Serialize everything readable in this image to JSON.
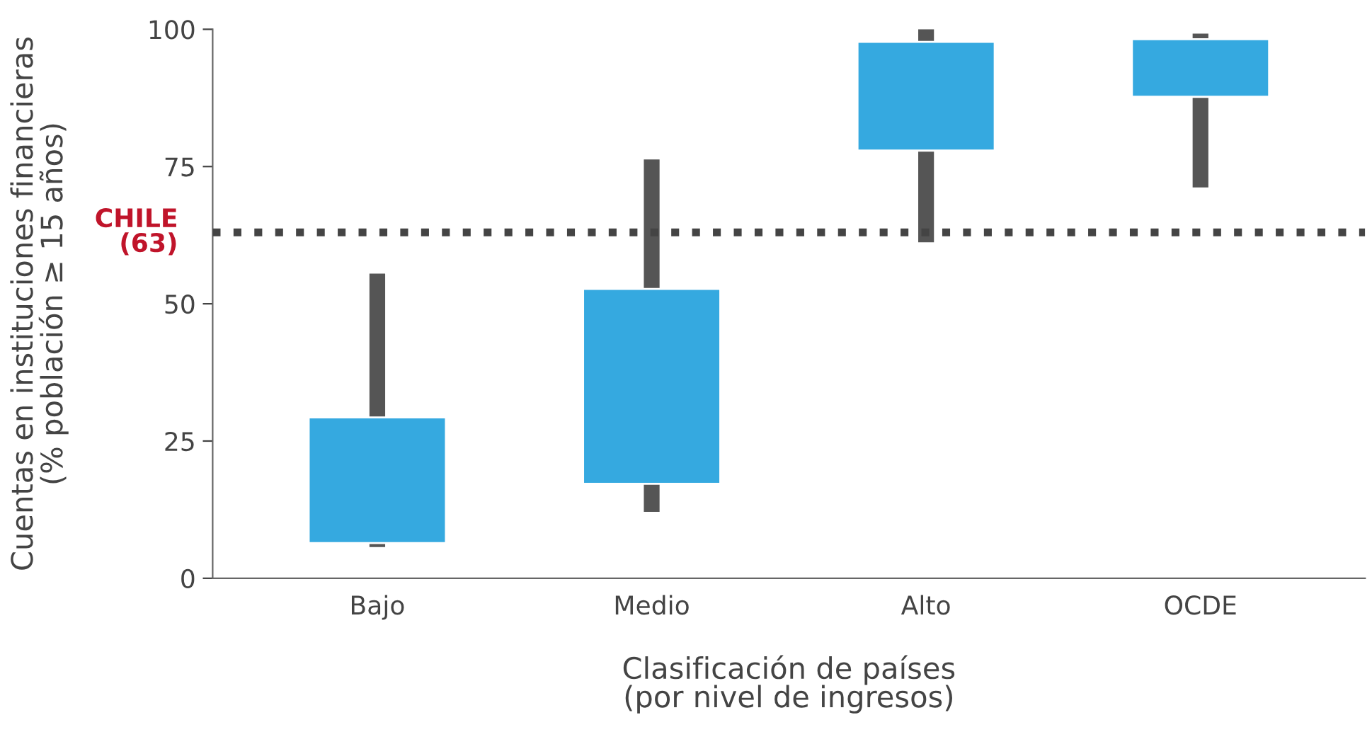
{
  "chart_data": {
    "type": "candlestick",
    "categories": [
      "Bajo",
      "Medio",
      "Alto",
      "OCDE"
    ],
    "ohlc": [
      [
        6.4,
        55.5,
        5.7,
        29.3
      ],
      [
        17.2,
        76.3,
        12.1,
        52.7
      ],
      [
        77.9,
        100,
        61.2,
        97.7
      ],
      [
        87.7,
        99.2,
        71.2,
        98.2
      ]
    ],
    "color": "#35a9e0",
    "xlabel": "Clasificación de países\n(por nivel de ingresos)",
    "ylabel": "Cuentas en instituciones financieras\n(% población ≥ 15 años)",
    "ylim": [
      0,
      100
    ],
    "yticks": [
      0,
      25,
      50,
      75,
      100
    ],
    "ref_lines": [
      {
        "axis": "y",
        "value": 63,
        "label": "CHILE\n(63)",
        "color": "#444444",
        "line_style": "dotted"
      }
    ],
    "grid": false,
    "legend": false
  }
}
